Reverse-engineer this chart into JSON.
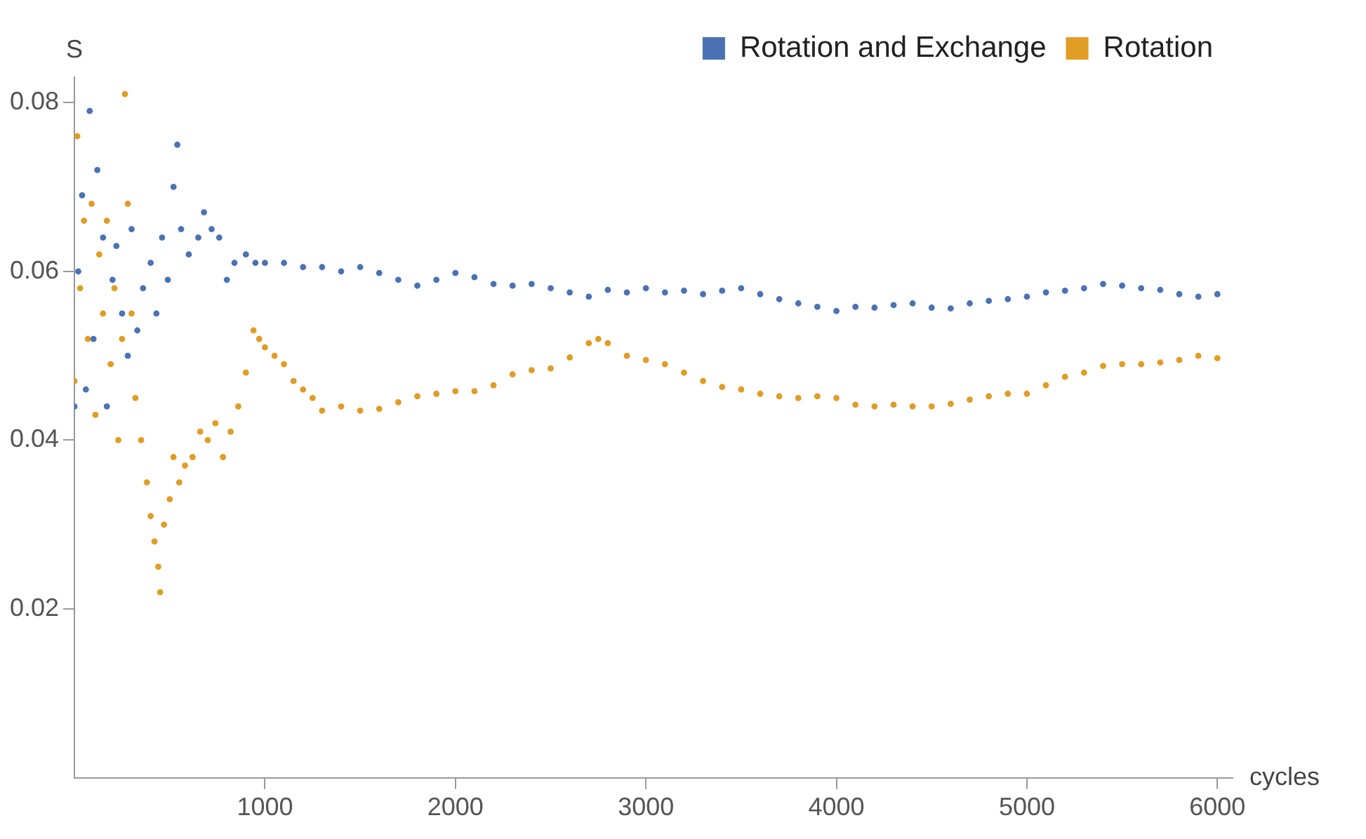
{
  "chart_data": {
    "type": "scatter",
    "xlabel": "cycles",
    "ylabel": "S",
    "xlim": [
      0,
      6080
    ],
    "ylim": [
      0,
      0.083
    ],
    "xticks": [
      1000,
      2000,
      3000,
      4000,
      5000,
      6000
    ],
    "yticks": [
      0.02,
      0.04,
      0.06,
      0.08
    ],
    "grid": false,
    "legend": "top right",
    "marker": "circle",
    "series": [
      {
        "name": "Rotation and Exchange",
        "color": "#4a72b5",
        "x": [
          0,
          20,
          40,
          60,
          80,
          100,
          120,
          150,
          170,
          200,
          220,
          250,
          280,
          300,
          330,
          360,
          400,
          430,
          460,
          490,
          520,
          540,
          560,
          600,
          650,
          680,
          720,
          760,
          800,
          840,
          900,
          950,
          1000,
          1100,
          1200,
          1300,
          1400,
          1500,
          1600,
          1700,
          1800,
          1900,
          2000,
          2100,
          2200,
          2300,
          2400,
          2500,
          2600,
          2700,
          2800,
          2900,
          3000,
          3100,
          3200,
          3300,
          3400,
          3500,
          3600,
          3700,
          3800,
          3900,
          4000,
          4100,
          4200,
          4300,
          4400,
          4500,
          4600,
          4700,
          4800,
          4900,
          5000,
          5100,
          5200,
          5300,
          5400,
          5500,
          5600,
          5700,
          5800,
          5900,
          6000
        ],
        "values": [
          0.044,
          0.06,
          0.069,
          0.046,
          0.079,
          0.052,
          0.072,
          0.064,
          0.044,
          0.059,
          0.063,
          0.055,
          0.05,
          0.065,
          0.053,
          0.058,
          0.061,
          0.055,
          0.064,
          0.059,
          0.07,
          0.075,
          0.065,
          0.062,
          0.064,
          0.067,
          0.065,
          0.064,
          0.059,
          0.061,
          0.062,
          0.061,
          0.061,
          0.061,
          0.0605,
          0.0605,
          0.06,
          0.0605,
          0.0598,
          0.059,
          0.0583,
          0.059,
          0.0598,
          0.0593,
          0.0585,
          0.0583,
          0.0585,
          0.058,
          0.0575,
          0.057,
          0.0578,
          0.0575,
          0.058,
          0.0575,
          0.0577,
          0.0573,
          0.0577,
          0.058,
          0.0573,
          0.0567,
          0.0562,
          0.0558,
          0.0553,
          0.0558,
          0.0557,
          0.056,
          0.0562,
          0.0557,
          0.0556,
          0.0562,
          0.0565,
          0.0567,
          0.057,
          0.0575,
          0.0577,
          0.058,
          0.0585,
          0.0583,
          0.058,
          0.0578,
          0.0573,
          0.057,
          0.0573
        ]
      },
      {
        "name": "Rotation",
        "color": "#e19c24",
        "x": [
          0,
          15,
          30,
          50,
          70,
          90,
          110,
          130,
          150,
          170,
          190,
          210,
          230,
          250,
          265,
          280,
          300,
          320,
          350,
          380,
          400,
          420,
          440,
          450,
          470,
          500,
          520,
          550,
          580,
          620,
          660,
          700,
          740,
          780,
          820,
          860,
          900,
          940,
          970,
          1000,
          1050,
          1100,
          1150,
          1200,
          1250,
          1300,
          1400,
          1500,
          1600,
          1700,
          1800,
          1900,
          2000,
          2100,
          2200,
          2300,
          2400,
          2500,
          2600,
          2700,
          2750,
          2800,
          2900,
          3000,
          3100,
          3200,
          3300,
          3400,
          3500,
          3600,
          3700,
          3800,
          3900,
          4000,
          4100,
          4200,
          4300,
          4400,
          4500,
          4600,
          4700,
          4800,
          4900,
          5000,
          5100,
          5200,
          5300,
          5400,
          5500,
          5600,
          5700,
          5800,
          5900,
          6000
        ],
        "values": [
          0.047,
          0.076,
          0.058,
          0.066,
          0.052,
          0.068,
          0.043,
          0.062,
          0.055,
          0.066,
          0.049,
          0.058,
          0.04,
          0.052,
          0.081,
          0.068,
          0.055,
          0.045,
          0.04,
          0.035,
          0.031,
          0.028,
          0.025,
          0.022,
          0.03,
          0.033,
          0.038,
          0.035,
          0.037,
          0.038,
          0.041,
          0.04,
          0.042,
          0.038,
          0.041,
          0.044,
          0.048,
          0.053,
          0.052,
          0.051,
          0.05,
          0.049,
          0.047,
          0.046,
          0.045,
          0.0435,
          0.044,
          0.0435,
          0.0437,
          0.0445,
          0.0452,
          0.0455,
          0.0458,
          0.0458,
          0.0465,
          0.0478,
          0.0483,
          0.0485,
          0.0498,
          0.0515,
          0.052,
          0.0515,
          0.05,
          0.0495,
          0.049,
          0.048,
          0.047,
          0.0463,
          0.046,
          0.0455,
          0.0452,
          0.045,
          0.0452,
          0.045,
          0.0442,
          0.044,
          0.0442,
          0.044,
          0.044,
          0.0443,
          0.0448,
          0.0452,
          0.0455,
          0.0455,
          0.0465,
          0.0475,
          0.048,
          0.0488,
          0.049,
          0.049,
          0.0492,
          0.0495,
          0.05,
          0.0497
        ]
      }
    ]
  }
}
